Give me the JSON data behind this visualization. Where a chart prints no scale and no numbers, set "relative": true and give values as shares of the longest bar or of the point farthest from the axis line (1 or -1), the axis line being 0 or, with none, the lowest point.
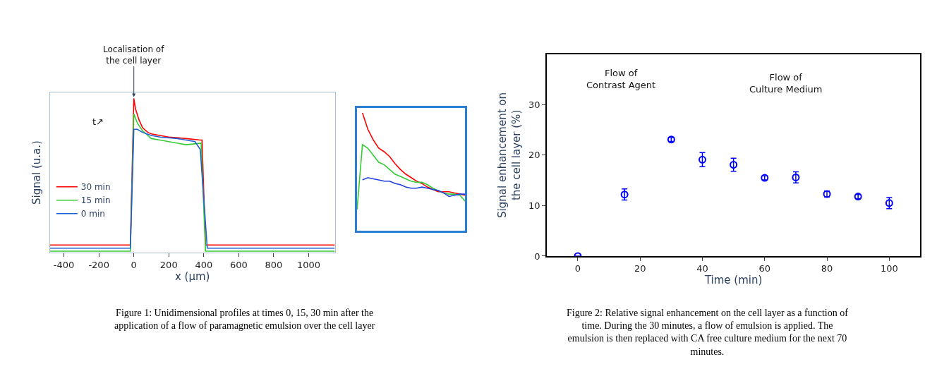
{
  "chart_data": [
    {
      "type": "line",
      "relative": true,
      "xlabel": "x (µm)",
      "ylabel": "Signal (u.a.)",
      "xlim": [
        -480,
        1150
      ],
      "xticks": [
        -400,
        -200,
        0,
        200,
        400,
        600,
        800,
        1000
      ],
      "tick_labels": "x",
      "legend": "bottom left",
      "marker": "none",
      "line_style": "solid",
      "annotations": [
        {
          "text": "Localisation of\nthe cell layer",
          "x": 0,
          "y": 1.0
        },
        "t↗",
        "Figure 1: Unidimensional profiles at times 0, 15, 30 min after the\napplication of a flow of paramagnetic emulsion over the cell layer"
      ],
      "series": [
        {
          "name": "30 min",
          "color": "#ff0000",
          "x": [
            -480,
            -400,
            -300,
            -200,
            -100,
            -20,
            0,
            10,
            30,
            50,
            80,
            100,
            150,
            200,
            300,
            380,
            390,
            410,
            500,
            700,
            900,
            1150
          ],
          "values": [
            0.05,
            0.05,
            0.05,
            0.05,
            0.05,
            0.05,
            1.0,
            0.93,
            0.86,
            0.81,
            0.78,
            0.77,
            0.76,
            0.75,
            0.74,
            0.73,
            0.73,
            0.05,
            0.05,
            0.05,
            0.05,
            0.05
          ]
        },
        {
          "name": "15 min",
          "color": "#33cc33",
          "x": [
            -480,
            -400,
            -300,
            -200,
            -100,
            -20,
            0,
            20,
            50,
            80,
            100,
            150,
            200,
            300,
            385,
            410,
            500,
            700,
            900,
            1150
          ],
          "values": [
            0.01,
            0.01,
            0.01,
            0.01,
            0.01,
            0.01,
            0.9,
            0.84,
            0.79,
            0.76,
            0.74,
            0.73,
            0.72,
            0.7,
            0.71,
            0.01,
            0.01,
            0.01,
            0.01,
            0.01
          ]
        },
        {
          "name": "0 min",
          "color": "#1f5fd0",
          "x": [
            -480,
            -400,
            -300,
            -200,
            -100,
            -20,
            0,
            20,
            50,
            100,
            150,
            250,
            350,
            380,
            420,
            500,
            700,
            900,
            1150
          ],
          "values": [
            0.03,
            0.03,
            0.03,
            0.03,
            0.03,
            0.03,
            0.8,
            0.8,
            0.78,
            0.76,
            0.75,
            0.74,
            0.72,
            0.67,
            0.03,
            0.03,
            0.03,
            0.03,
            0.03
          ]
        }
      ]
    },
    {
      "type": "line",
      "relative": true,
      "tick_labels": false,
      "marker": "none",
      "line_style": "solid",
      "categories": [
        null,
        null,
        null,
        null,
        null,
        null,
        null,
        null,
        null,
        null,
        null,
        null,
        null,
        null,
        null,
        null,
        null,
        null,
        null,
        null,
        null
      ],
      "series": [
        {
          "color": "#ff0000",
          "values": [
            null,
            1.0,
            0.86,
            0.77,
            0.7,
            0.67,
            0.63,
            0.57,
            0.52,
            0.48,
            0.45,
            0.42,
            0.4,
            0.37,
            0.35,
            0.33,
            0.33,
            0.33,
            0.32,
            0.31,
            0.3
          ]
        },
        {
          "color": "#33cc33",
          "values": [
            0.18,
            0.73,
            0.7,
            0.64,
            0.58,
            0.56,
            0.52,
            0.48,
            0.46,
            0.44,
            0.42,
            0.41,
            0.41,
            0.39,
            0.36,
            0.34,
            0.32,
            0.31,
            0.31,
            0.3,
            0.25
          ]
        },
        {
          "color": "#1f3fe0",
          "values": [
            null,
            0.43,
            0.45,
            0.44,
            0.43,
            0.42,
            0.42,
            0.4,
            0.39,
            0.37,
            0.36,
            0.36,
            0.37,
            0.36,
            0.35,
            0.34,
            0.32,
            0.29,
            0.3,
            0.31,
            0.31
          ]
        }
      ]
    },
    {
      "type": "scatter",
      "xlabel": "Time (min)",
      "ylabel": "Signal enhancement on\nthe cell layer (%)",
      "xlim": [
        -10,
        110
      ],
      "ylim": [
        0,
        40
      ],
      "xticks": [
        0,
        20,
        40,
        60,
        80,
        100
      ],
      "yticks": [
        0,
        10,
        20,
        30
      ],
      "marker": "circle",
      "annotations": [
        "Flow of\nContrast Agent",
        "Flow of\nCulture Medium",
        "Figure 2: Relative signal enhancement on the cell layer as a function of\ntime. During the 30 minutes, a flow of emulsion is applied. The\nemulsion is then replaced with CA free culture medium for the next 70\nminutes."
      ],
      "series": [
        {
          "color": "#0000ff",
          "x": [
            0,
            15,
            30,
            40,
            50,
            60,
            70,
            80,
            90,
            100
          ],
          "values": [
            0,
            12.2,
            23.1,
            19.1,
            18.1,
            15.5,
            15.6,
            12.3,
            11.8,
            10.5
          ],
          "errors": [
            null,
            1.1,
            0.4,
            1.4,
            1.3,
            0.4,
            1.1,
            0.6,
            0.4,
            1.1
          ]
        }
      ]
    }
  ]
}
